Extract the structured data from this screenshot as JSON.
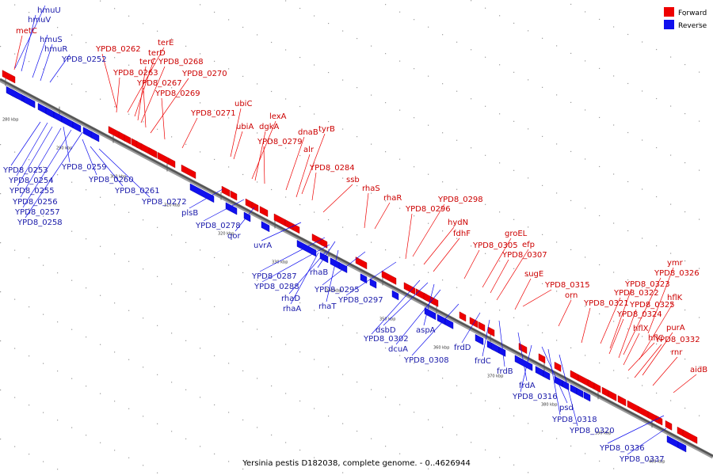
{
  "legend": {
    "forward": {
      "label": "Forward",
      "color": "#ee0000"
    },
    "reverse": {
      "label": "Reverse",
      "color": "#1010ee"
    }
  },
  "caption": "Yersinia pestis D182038, complete genome. - 0..4626944",
  "scale": {
    "ticks": [
      {
        "kbp": 280,
        "label": "280 kbp"
      },
      {
        "kbp": 290,
        "label": "290 kbp"
      },
      {
        "kbp": 300,
        "label": "300 kbp"
      },
      {
        "kbp": 310,
        "label": "310 kbp"
      },
      {
        "kbp": 320,
        "label": "320 kbp"
      },
      {
        "kbp": 330,
        "label": "330 kbp"
      },
      {
        "kbp": 340,
        "label": "340 kbp"
      },
      {
        "kbp": 350,
        "label": "350 kbp"
      },
      {
        "kbp": 360,
        "label": "360 kbp"
      },
      {
        "kbp": 370,
        "label": "370 kbp"
      },
      {
        "kbp": 380,
        "label": "380 kbp"
      },
      {
        "kbp": 390,
        "label": "390 kbp"
      },
      {
        "kbp": 400,
        "label": "400 kbp"
      }
    ]
  },
  "genes": [
    {
      "label": "metC",
      "strand": "forward"
    },
    {
      "label": "hmuU",
      "strand": "reverse"
    },
    {
      "label": "hmuV",
      "strand": "reverse"
    },
    {
      "label": "hmuS",
      "strand": "reverse"
    },
    {
      "label": "hmuR",
      "strand": "reverse"
    },
    {
      "label": "YPD8_0252",
      "strand": "reverse"
    },
    {
      "label": "YPD8_0262",
      "strand": "forward"
    },
    {
      "label": "YPD8_0263",
      "strand": "forward"
    },
    {
      "label": "terE",
      "strand": "forward"
    },
    {
      "label": "terD",
      "strand": "forward"
    },
    {
      "label": "terC",
      "strand": "forward"
    },
    {
      "label": "YPD8_0268",
      "strand": "forward"
    },
    {
      "label": "YPD8_0267",
      "strand": "forward"
    },
    {
      "label": "YPD8_0270",
      "strand": "forward"
    },
    {
      "label": "YPD8_0269",
      "strand": "forward"
    },
    {
      "label": "YPD8_0271",
      "strand": "forward"
    },
    {
      "label": "ubiC",
      "strand": "forward"
    },
    {
      "label": "ubiA",
      "strand": "forward"
    },
    {
      "label": "lexA",
      "strand": "forward"
    },
    {
      "label": "dgkA",
      "strand": "forward"
    },
    {
      "label": "YPD8_0279",
      "strand": "forward"
    },
    {
      "label": "dnaB",
      "strand": "forward"
    },
    {
      "label": "tyrB",
      "strand": "forward"
    },
    {
      "label": "alr",
      "strand": "forward"
    },
    {
      "label": "YPD8_0284",
      "strand": "forward"
    },
    {
      "label": "ssb",
      "strand": "forward"
    },
    {
      "label": "rhaS",
      "strand": "forward"
    },
    {
      "label": "rhaR",
      "strand": "forward"
    },
    {
      "label": "YPD8_0298",
      "strand": "forward"
    },
    {
      "label": "YPD8_0296",
      "strand": "forward"
    },
    {
      "label": "hydN",
      "strand": "forward"
    },
    {
      "label": "fdhF",
      "strand": "forward"
    },
    {
      "label": "groEL",
      "strand": "forward"
    },
    {
      "label": "YPD8_0305",
      "strand": "forward"
    },
    {
      "label": "efp",
      "strand": "forward"
    },
    {
      "label": "YPD8_0307",
      "strand": "forward"
    },
    {
      "label": "sugE",
      "strand": "forward"
    },
    {
      "label": "YPD8_0315",
      "strand": "forward"
    },
    {
      "label": "orn",
      "strand": "forward"
    },
    {
      "label": "ymr",
      "strand": "forward"
    },
    {
      "label": "YPD8_0326",
      "strand": "forward"
    },
    {
      "label": "YPD8_0323",
      "strand": "forward"
    },
    {
      "label": "YPD8_0322",
      "strand": "forward"
    },
    {
      "label": "hflK",
      "strand": "forward"
    },
    {
      "label": "YPD8_0321",
      "strand": "forward"
    },
    {
      "label": "YPD8_0325",
      "strand": "forward"
    },
    {
      "label": "YPD8_0324",
      "strand": "forward"
    },
    {
      "label": "hflX",
      "strand": "forward"
    },
    {
      "label": "purA",
      "strand": "forward"
    },
    {
      "label": "hflC",
      "strand": "forward"
    },
    {
      "label": "YPD8_0332",
      "strand": "forward"
    },
    {
      "label": "rnr",
      "strand": "forward"
    },
    {
      "label": "aidB",
      "strand": "forward"
    },
    {
      "label": "YPD8_0253",
      "strand": "reverse"
    },
    {
      "label": "YPD8_0259",
      "strand": "reverse"
    },
    {
      "label": "YPD8_0254",
      "strand": "reverse"
    },
    {
      "label": "YPD8_0260",
      "strand": "reverse"
    },
    {
      "label": "YPD8_0255",
      "strand": "reverse"
    },
    {
      "label": "YPD8_0261",
      "strand": "reverse"
    },
    {
      "label": "YPD8_0256",
      "strand": "reverse"
    },
    {
      "label": "YPD8_0272",
      "strand": "reverse"
    },
    {
      "label": "YPD8_0257",
      "strand": "reverse"
    },
    {
      "label": "plsB",
      "strand": "reverse"
    },
    {
      "label": "YPD8_0258",
      "strand": "reverse"
    },
    {
      "label": "YPD8_0278",
      "strand": "reverse"
    },
    {
      "label": "qor",
      "strand": "reverse"
    },
    {
      "label": "uvrA",
      "strand": "reverse"
    },
    {
      "label": "YPD8_0287",
      "strand": "reverse"
    },
    {
      "label": "rhaB",
      "strand": "reverse"
    },
    {
      "label": "YPD8_0288",
      "strand": "reverse"
    },
    {
      "label": "rhaD",
      "strand": "reverse"
    },
    {
      "label": "YPD8_0295",
      "strand": "reverse"
    },
    {
      "label": "rhaA",
      "strand": "reverse"
    },
    {
      "label": "rhaT",
      "strand": "reverse"
    },
    {
      "label": "YPD8_0297",
      "strand": "reverse"
    },
    {
      "label": "dsbD",
      "strand": "reverse"
    },
    {
      "label": "aspA",
      "strand": "reverse"
    },
    {
      "label": "YPD8_0302",
      "strand": "reverse"
    },
    {
      "label": "dcuA",
      "strand": "reverse"
    },
    {
      "label": "frdD",
      "strand": "reverse"
    },
    {
      "label": "YPD8_0308",
      "strand": "reverse"
    },
    {
      "label": "frdC",
      "strand": "reverse"
    },
    {
      "label": "frdB",
      "strand": "reverse"
    },
    {
      "label": "frdA",
      "strand": "reverse"
    },
    {
      "label": "YPD8_0316",
      "strand": "reverse"
    },
    {
      "label": "psd",
      "strand": "reverse"
    },
    {
      "label": "YPD8_0318",
      "strand": "reverse"
    },
    {
      "label": "YPD8_0320",
      "strand": "reverse"
    },
    {
      "label": "YPD8_0336",
      "strand": "reverse"
    },
    {
      "label": "YPD8_0337",
      "strand": "reverse"
    }
  ]
}
